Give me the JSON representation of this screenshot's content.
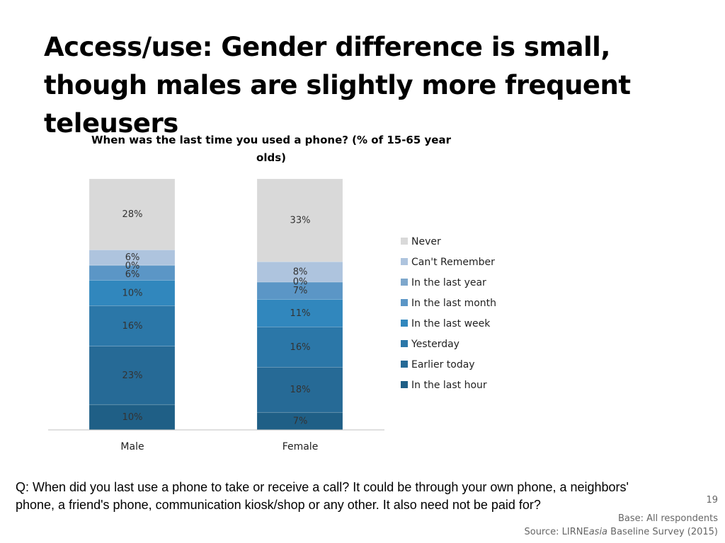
{
  "slide": {
    "title": "Access/use: Gender difference is small, though males are slightly more frequent teleusers",
    "question": "Q: When did you last use a phone to take or receive a call? It could be through your own phone, a neighbors' phone, a friend's phone, communication kiosk/shop or any other. It also need not be paid for?",
    "page_number": "19",
    "base_note": "Base: All respondents",
    "source_prefix": "Source: LIRNE",
    "source_italic": "asia",
    "source_suffix": " Baseline Survey (2015)"
  },
  "chart_data": {
    "type": "bar",
    "stacked": true,
    "title": "When was the last time you used a phone? (% of 15-65 year olds)",
    "categories": [
      "Male",
      "Female"
    ],
    "series": [
      {
        "name": "In the last hour",
        "color": "#1f5f86",
        "values": [
          10,
          7
        ],
        "labels": [
          "10%",
          "7%"
        ]
      },
      {
        "name": "Earlier today",
        "color": "#266a96",
        "values": [
          23,
          18
        ],
        "labels": [
          "23%",
          "18%"
        ]
      },
      {
        "name": "Yesterday",
        "color": "#2b77a8",
        "values": [
          16,
          16
        ],
        "labels": [
          "16%",
          "16%"
        ]
      },
      {
        "name": "In the last week",
        "color": "#3187bd",
        "values": [
          10,
          11
        ],
        "labels": [
          "10%",
          "11%"
        ]
      },
      {
        "name": "In the last month",
        "color": "#5b96c6",
        "values": [
          6,
          7
        ],
        "labels": [
          "6%",
          "7%"
        ]
      },
      {
        "name": "In the last year",
        "color": "#7ea7cc",
        "values": [
          0,
          0
        ],
        "labels": [
          "0%",
          "0%"
        ]
      },
      {
        "name": "Can't Remember",
        "color": "#aec4de",
        "values": [
          6,
          8
        ],
        "labels": [
          "6%",
          "8%"
        ]
      },
      {
        "name": "Never",
        "color": "#d9d9d9",
        "values": [
          28,
          33
        ],
        "labels": [
          "28%",
          "33%"
        ]
      }
    ],
    "legend_position": "right",
    "grid": false
  }
}
